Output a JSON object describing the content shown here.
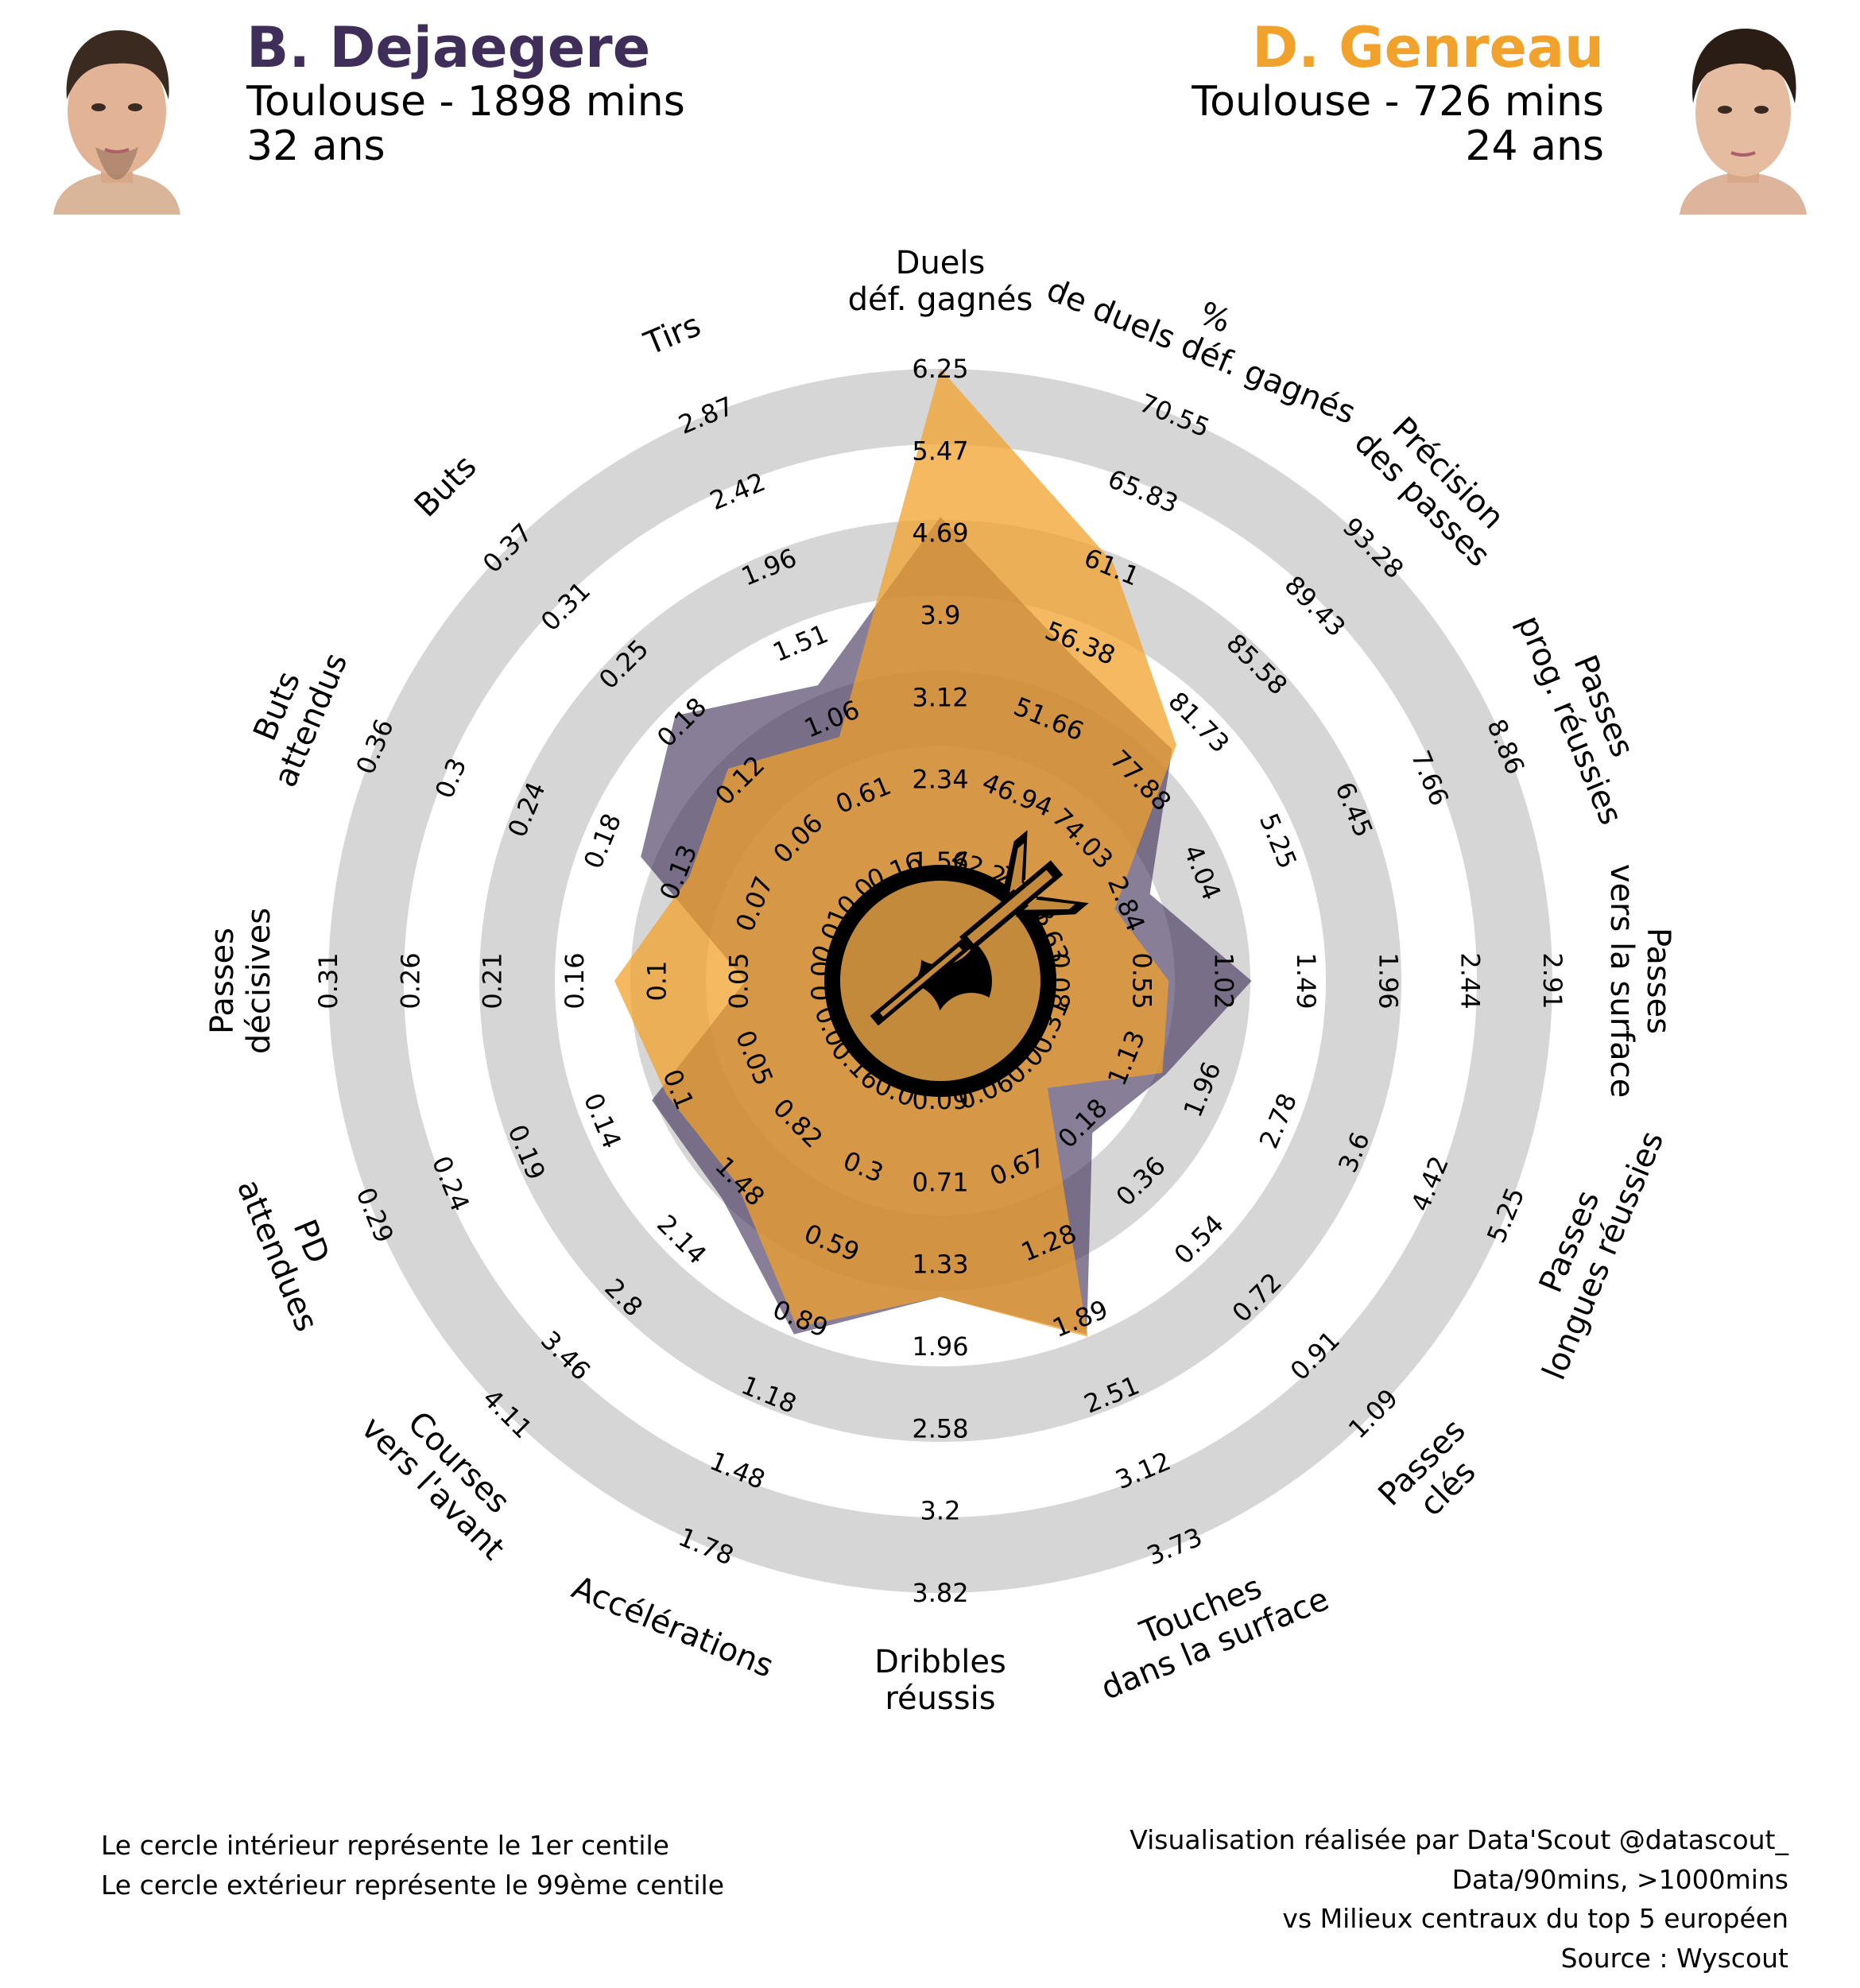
{
  "player1": {
    "name": "B. Dejaegere",
    "team_line": "Toulouse - 1898 mins",
    "age_line": "32 ans",
    "color": "#3f2e59"
  },
  "player2": {
    "name": "D. Genreau",
    "team_line": "Toulouse - 726 mins",
    "age_line": "24 ans",
    "color": "#f0a22c"
  },
  "footer_left": [
    "Le cercle intérieur représente le 1er centile",
    "Le cercle extérieur représente le 99ème centile"
  ],
  "footer_right": [
    "Visualisation réalisée par Data'Scout @datascout_",
    "Data/90mins, >1000mins",
    "vs Milieux centraux du top 5 européen",
    "Source : Wyscout"
  ],
  "chart_data": {
    "type": "radar",
    "colors": {
      "player1": "#3f2e59",
      "player2": "#f0a22c",
      "rings": "#d6d6d6",
      "center_logo": "#000000"
    },
    "metrics": [
      {
        "label": "Duels\ndéf. gagnés",
        "ticks": [
          "1.56",
          "2.34",
          "3.12",
          "3.9",
          "4.69",
          "5.47",
          "6.25"
        ],
        "min": 0.78,
        "max": 6.25
      },
      {
        "label": "%\nde duels déf. gagnés",
        "ticks": [
          "42.22",
          "46.94",
          "51.66",
          "56.38",
          "61.1",
          "65.83",
          "70.55"
        ],
        "min": 37.5,
        "max": 70.55
      },
      {
        "label": "Précision\ndes passes",
        "ticks": [
          "70.18",
          "74.03",
          "77.88",
          "81.73",
          "85.58",
          "89.43",
          "93.28"
        ],
        "min": 66.33,
        "max": 93.28
      },
      {
        "label": "Passes\nprog. réussies",
        "ticks": [
          "1.63",
          "2.84",
          "4.04",
          "5.25",
          "6.45",
          "7.66",
          "8.86"
        ],
        "min": 0.42,
        "max": 8.86
      },
      {
        "label": "Passes\nvers la surface",
        "ticks": [
          "0.08",
          "0.55",
          "1.02",
          "1.49",
          "1.96",
          "2.44",
          "2.91"
        ],
        "min": -0.39,
        "max": 2.91
      },
      {
        "label": "Passes\nlongues réussies",
        "ticks": [
          "0.31",
          "1.13",
          "1.96",
          "2.78",
          "3.6",
          "4.42",
          "5.25"
        ],
        "min": -0.51,
        "max": 5.25
      },
      {
        "label": "Passes\nclés",
        "ticks": [
          "0.0",
          "0.18",
          "0.36",
          "0.54",
          "0.72",
          "0.91",
          "1.09"
        ],
        "min": -0.18,
        "max": 1.09
      },
      {
        "label": "Touches\ndans la surface",
        "ticks": [
          "0.06",
          "0.67",
          "1.28",
          "1.89",
          "2.51",
          "3.12",
          "3.73"
        ],
        "min": -0.55,
        "max": 3.73
      },
      {
        "label": "Dribbles\nréussis",
        "ticks": [
          "0.09",
          "0.71",
          "1.33",
          "1.96",
          "2.58",
          "3.2",
          "3.82"
        ],
        "min": -0.53,
        "max": 3.82
      },
      {
        "label": "Accélérations",
        "ticks": [
          "0.0",
          "0.3",
          "0.59",
          "0.89",
          "1.18",
          "1.48",
          "1.78"
        ],
        "min": -0.3,
        "max": 1.78
      },
      {
        "label": "Courses\nvers l'avant",
        "ticks": [
          "0.16",
          "0.82",
          "1.48",
          "2.14",
          "2.8",
          "3.46",
          "4.11"
        ],
        "min": -0.5,
        "max": 4.11
      },
      {
        "label": "PD\nattendues",
        "ticks": [
          "0.0",
          "0.05",
          "0.1",
          "0.14",
          "0.19",
          "0.24",
          "0.29"
        ],
        "min": -0.05,
        "max": 0.29
      },
      {
        "label": "Passes\ndécisives",
        "ticks": [
          "0.0",
          "0.05",
          "0.1",
          "0.16",
          "0.21",
          "0.26",
          "0.31"
        ],
        "min": -0.05,
        "max": 0.31
      },
      {
        "label": "Buts\nattendus",
        "ticks": [
          "0.01",
          "0.07",
          "0.13",
          "0.18",
          "0.24",
          "0.3",
          "0.36"
        ],
        "min": -0.05,
        "max": 0.36
      },
      {
        "label": "Buts",
        "ticks": [
          "0.0",
          "0.06",
          "0.12",
          "0.18",
          "0.25",
          "0.31",
          "0.37"
        ],
        "min": -0.06,
        "max": 0.37
      },
      {
        "label": "Tirs",
        "ticks": [
          "0.16",
          "0.61",
          "1.06",
          "1.51",
          "1.96",
          "2.42",
          "2.87"
        ],
        "min": -0.29,
        "max": 2.87
      }
    ],
    "series": [
      {
        "name": "B. Dejaegere",
        "values": [
          4.74,
          54.4,
          79.0,
          2.8,
          1.06,
          1.3,
          0.15,
          1.9,
          1.42,
          0.89,
          1.5,
          0.1,
          0.03,
          0.14,
          0.18,
          1.15
        ]
      },
      {
        "name": "D. Genreau",
        "values": [
          6.25,
          60.7,
          79.3,
          2.2,
          0.55,
          1.26,
          0.0,
          1.92,
          1.42,
          0.86,
          1.32,
          0.09,
          0.118,
          0.1,
          0.12,
          0.82
        ]
      }
    ]
  }
}
